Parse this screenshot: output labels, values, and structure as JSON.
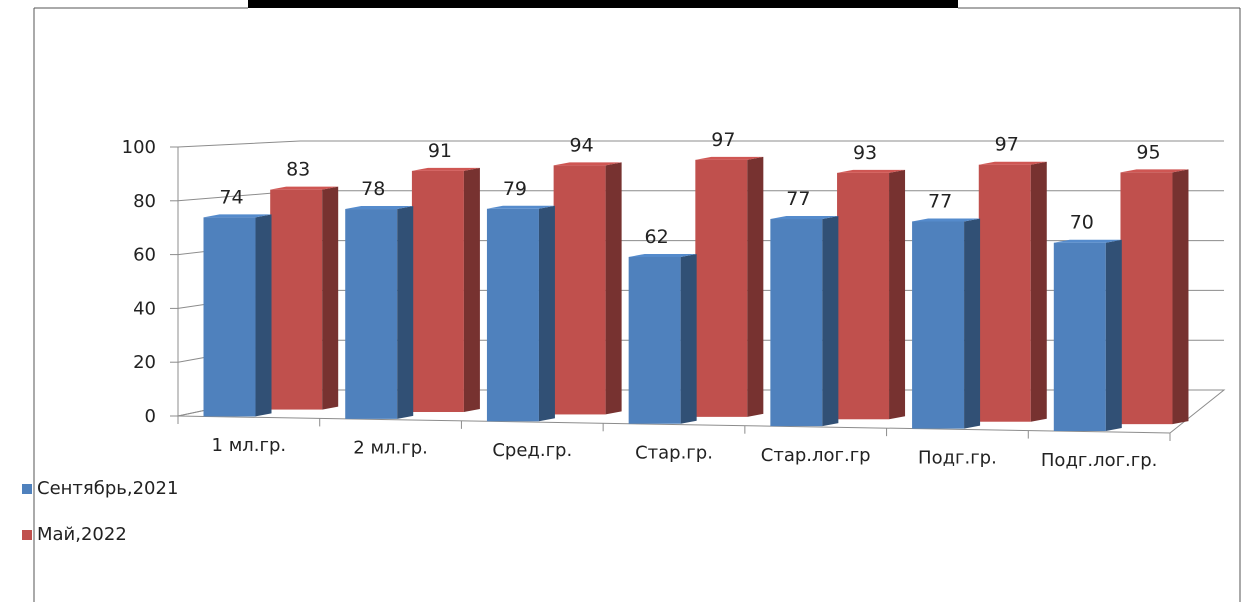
{
  "chart_data": {
    "type": "bar",
    "categories": [
      "1 мл.гр.",
      "2 мл.гр.",
      "Сред.гр.",
      "Стар.гр.",
      "Стар.лог.гр",
      "Подг.гр.",
      "Подг.лог.гр."
    ],
    "series": [
      {
        "name": "Сентябрь,2021",
        "values": [
          74,
          78,
          79,
          62,
          77,
          77,
          70
        ],
        "color": "#4F81BD"
      },
      {
        "name": "Май,2022",
        "values": [
          83,
          91,
          94,
          97,
          93,
          97,
          95
        ],
        "color": "#C0504D"
      }
    ],
    "yticks": [
      "0",
      "20",
      "40",
      "60",
      "80",
      "100"
    ],
    "ylim": [
      0,
      100
    ],
    "grid": true,
    "three_d": true,
    "legend_position": "bottom-left"
  }
}
